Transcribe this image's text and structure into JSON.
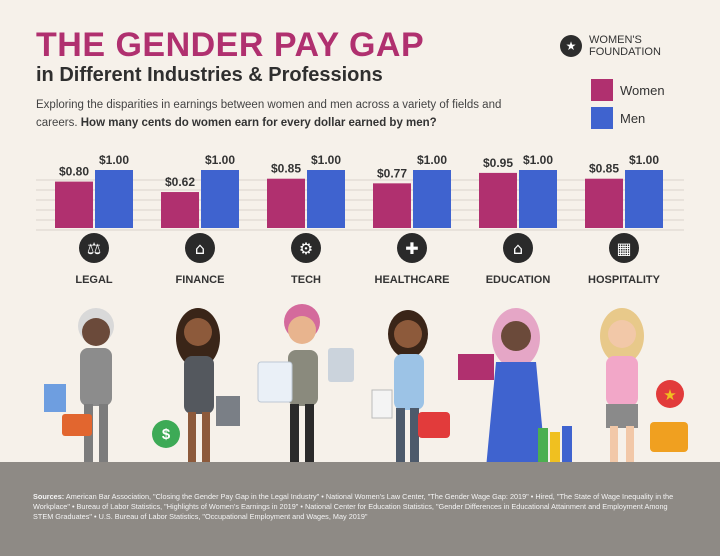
{
  "header": {
    "title": "THE GENDER PAY GAP",
    "subtitle": "in Different Industries & Professions",
    "intro_plain": "Exploring the disparities in earnings between women and men across a variety of fields and careers. ",
    "intro_bold": "How many cents do women earn for every dollar earned by men?"
  },
  "logo": {
    "text": "WOMEN'S FOUNDATION",
    "icon": "star-icon"
  },
  "legend": {
    "women": "Women",
    "men": "Men"
  },
  "colors": {
    "women": "#b0306f",
    "men": "#3f63cf",
    "title": "#b0306f",
    "footer": "#8e8a85"
  },
  "chart_data": {
    "type": "bar",
    "categories": [
      "LEGAL",
      "FINANCE",
      "TECH",
      "HEALTHCARE",
      "EDUCATION",
      "HOSPITALITY"
    ],
    "series": [
      {
        "name": "Women",
        "values": [
          0.8,
          0.62,
          0.85,
          0.77,
          0.95,
          0.85
        ],
        "labels": [
          "$0.80",
          "$0.62",
          "$0.85",
          "$0.77",
          "$0.95",
          "$0.85"
        ]
      },
      {
        "name": "Men",
        "values": [
          1.0,
          1.0,
          1.0,
          1.0,
          1.0,
          1.0
        ],
        "labels": [
          "$1.00",
          "$1.00",
          "$1.00",
          "$1.00",
          "$1.00",
          "$1.00"
        ]
      }
    ],
    "ylim": [
      0,
      1.0
    ],
    "legend_position": "top-right",
    "icons": [
      "scales-icon",
      "bank-icon",
      "gears-icon",
      "medical-cross-icon",
      "school-icon",
      "hotel-icon"
    ]
  },
  "footer": {
    "sources_label": "Sources:",
    "sources_text": "American Bar Association, \"Closing the Gender Pay Gap in the Legal Industry\" • National Women's Law Center, \"The Gender Wage Gap: 2019\" • Hired, \"The State of Wage Inequality in the Workplace\" • Bureau of Labor Statistics, \"Highlights of Women's Earnings in 2019\" • National Center for Education Statistics, \"Gender Differences in Educational Attainment and Employment Among STEM Graduates\" • U.S. Bureau of Labor Statistics, \"Occupational Employment and Wages, May 2019\""
  }
}
